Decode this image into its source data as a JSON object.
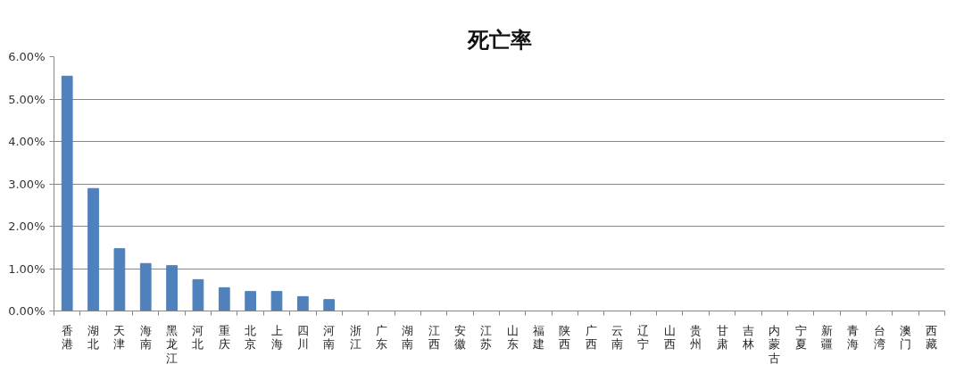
{
  "chart_data": {
    "type": "bar",
    "title": "死亡率",
    "categories": [
      "香港",
      "湖北",
      "天津",
      "海南",
      "黑龙江",
      "河北",
      "重庆",
      "北京",
      "上海",
      "四川",
      "河南",
      "浙江",
      "广东",
      "湖南",
      "江西",
      "安徽",
      "江苏",
      "山东",
      "福建",
      "陕西",
      "广西",
      "云南",
      "辽宁",
      "山西",
      "贵州",
      "甘肃",
      "吉林",
      "内蒙古",
      "宁夏",
      "新疆",
      "青海",
      "台湾",
      "澳门",
      "西藏"
    ],
    "values": [
      5.54,
      2.89,
      1.47,
      1.12,
      1.07,
      0.74,
      0.55,
      0.46,
      0.46,
      0.34,
      0.27,
      0,
      0,
      0,
      0,
      0,
      0,
      0,
      0,
      0,
      0,
      0,
      0,
      0,
      0,
      0,
      0,
      0,
      0,
      0,
      0,
      0,
      0,
      0
    ],
    "color": "#4f81bd",
    "ylim": [
      0,
      6
    ],
    "yticks": [
      {
        "value": 0,
        "label": "0.00%"
      },
      {
        "value": 1,
        "label": "1.00%"
      },
      {
        "value": 2,
        "label": "2.00%"
      },
      {
        "value": 3,
        "label": "3.00%"
      },
      {
        "value": 4,
        "label": "4.00%"
      },
      {
        "value": 5,
        "label": "5.00%"
      },
      {
        "value": 6,
        "label": "6.00%"
      }
    ],
    "grid": "y"
  }
}
